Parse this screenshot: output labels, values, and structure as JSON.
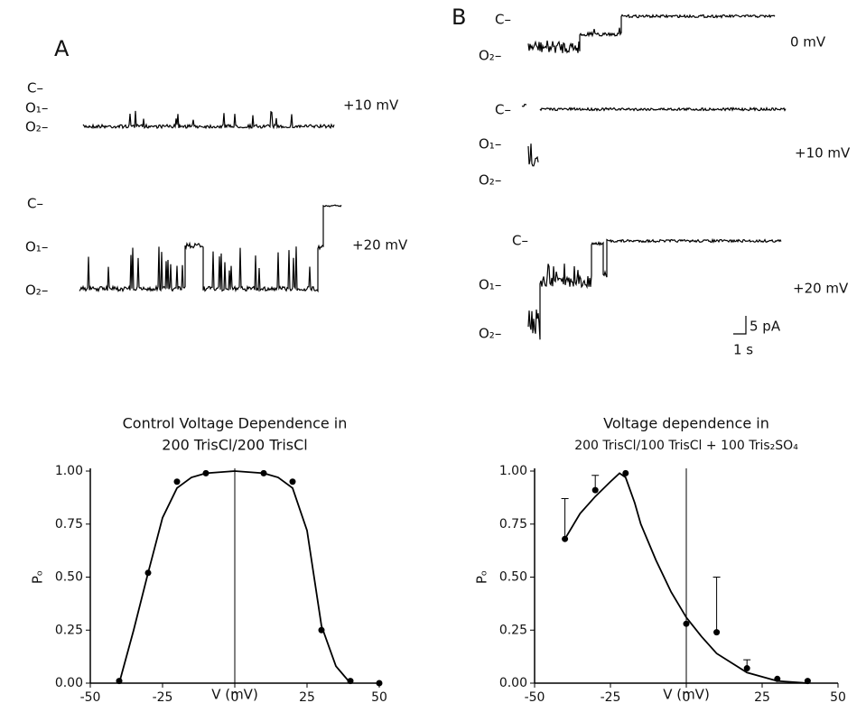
{
  "panel_a": {
    "label": "A",
    "traces": [
      {
        "levels": [
          "C–",
          "O₁–",
          "O₂–"
        ],
        "voltage": "+10 mV"
      },
      {
        "levels": [
          "C–",
          "O₁–",
          "O₂–"
        ],
        "voltage": "+20 mV"
      }
    ]
  },
  "panel_b": {
    "label": "B",
    "traces": [
      {
        "levels": [
          "C–",
          "O₂–"
        ],
        "voltage": "0 mV"
      },
      {
        "levels": [
          "C–",
          "O₁–",
          "O₂–"
        ],
        "voltage": "+10 mV"
      },
      {
        "levels": [
          "C–",
          "O₁–",
          "O₂–"
        ],
        "voltage": "+20 mV"
      }
    ],
    "scale_current": "5 pA",
    "scale_time": "1 s"
  },
  "chart_data": [
    {
      "type": "scatter",
      "title": "Control  Voltage Dependence in",
      "subtitle": "200 TrisCl/200 TrisCl",
      "x_label": "V (mV)",
      "y_label": "Pₒ",
      "xlim": [
        -50,
        50
      ],
      "ylim": [
        0,
        1
      ],
      "xticks": [
        -50,
        -25,
        0,
        25,
        50
      ],
      "yticks": [
        {
          "value": 0,
          "label": "0.00"
        },
        {
          "value": 0.25,
          "label": "0.25"
        },
        {
          "value": 0.5,
          "label": "0.50"
        },
        {
          "value": 0.75,
          "label": "0.75"
        },
        {
          "value": 1,
          "label": "1.00"
        }
      ],
      "series": [
        {
          "mode": "markers",
          "color": "#000",
          "x": [
            -40,
            -30,
            -20,
            -10,
            10,
            20,
            30,
            40,
            50
          ],
          "y": [
            0.01,
            0.52,
            0.95,
            0.99,
            0.99,
            0.95,
            0.25,
            0.01,
            0.0
          ],
          "errors": [
            null,
            null,
            null,
            null,
            null,
            null,
            null,
            null,
            null
          ]
        },
        {
          "mode": "line",
          "color": "#000",
          "x": [
            -40,
            -35,
            -30,
            -25,
            -20,
            -15,
            -10,
            0,
            10,
            15,
            20,
            25,
            30,
            35,
            40
          ],
          "y": [
            0.0,
            0.25,
            0.52,
            0.78,
            0.92,
            0.97,
            0.99,
            1.0,
            0.99,
            0.97,
            0.92,
            0.72,
            0.27,
            0.08,
            0.0
          ]
        }
      ]
    },
    {
      "type": "scatter",
      "title": "Voltage dependence in",
      "subtitle": "200 TrisCl/100 TrisCl + 100 Tris₂SO₄",
      "x_label": "V (mV)",
      "y_label": "Pₒ",
      "xlim": [
        -50,
        50
      ],
      "ylim": [
        0,
        1
      ],
      "xticks": [
        -50,
        -25,
        0,
        25,
        50
      ],
      "yticks": [
        {
          "value": 0,
          "label": "0.00"
        },
        {
          "value": 0.25,
          "label": "0.25"
        },
        {
          "value": 0.5,
          "label": "0.50"
        },
        {
          "value": 0.75,
          "label": "0.75"
        },
        {
          "value": 1,
          "label": "1.00"
        }
      ],
      "series": [
        {
          "mode": "markers",
          "color": "#000",
          "x": [
            -40,
            -30,
            -20,
            0,
            10,
            20,
            30,
            40
          ],
          "y": [
            0.68,
            0.91,
            0.99,
            0.28,
            0.24,
            0.07,
            0.02,
            0.01
          ],
          "errors": [
            0.19,
            0.07,
            null,
            null,
            0.26,
            0.04,
            null,
            null
          ]
        },
        {
          "mode": "line",
          "color": "#000",
          "x": [
            -40,
            -35,
            -30,
            -25,
            -22,
            -20,
            -17,
            -15,
            -10,
            -5,
            0,
            5,
            10,
            20,
            30,
            40
          ],
          "y": [
            0.68,
            0.8,
            0.88,
            0.95,
            0.99,
            0.97,
            0.85,
            0.75,
            0.58,
            0.43,
            0.31,
            0.22,
            0.14,
            0.05,
            0.01,
            0.0
          ]
        }
      ]
    }
  ]
}
